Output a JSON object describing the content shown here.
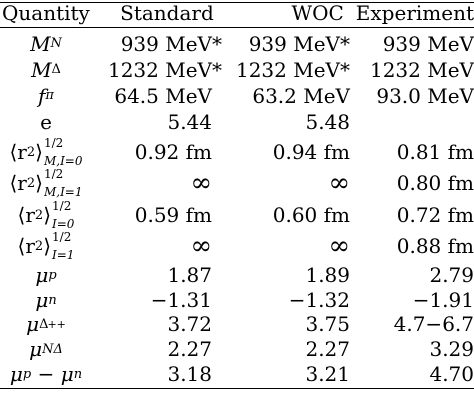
{
  "table": {
    "headers": [
      "Quantity",
      "Standard",
      "WOC",
      "Experiment"
    ],
    "rows": [
      {
        "q": "M_N",
        "standard": "939 MeV*",
        "woc": "939 MeV*",
        "experiment": "939 MeV"
      },
      {
        "q": "M_Δ",
        "standard": "1232 MeV*",
        "woc": "1232 MeV*",
        "experiment": "1232 MeV"
      },
      {
        "q": "f_π",
        "standard": "64.5 MeV",
        "woc": "63.2 MeV",
        "experiment": "93.0 MeV"
      },
      {
        "q": "e",
        "standard": "5.44",
        "woc": "5.48",
        "experiment": ""
      },
      {
        "q": "⟨r²⟩^{1/2}_{M,I=0}",
        "standard": "0.92 fm",
        "woc": "0.94 fm",
        "experiment": "0.81 fm"
      },
      {
        "q": "⟨r²⟩^{1/2}_{M,I=1}",
        "standard": "∞",
        "woc": "∞",
        "experiment": "0.80 fm"
      },
      {
        "q": "⟨r²⟩^{1/2}_{I=0}",
        "standard": "0.59 fm",
        "woc": "0.60 fm",
        "experiment": "0.72 fm"
      },
      {
        "q": "⟨r²⟩^{1/2}_{I=1}",
        "standard": "∞",
        "woc": "∞",
        "experiment": "0.88 fm"
      },
      {
        "q": "μ_p",
        "standard": "1.87",
        "woc": "1.89",
        "experiment": "2.79"
      },
      {
        "q": "μ_n",
        "standard": "−1.31",
        "woc": "−1.32",
        "experiment": "−1.91"
      },
      {
        "q": "μ_Δ++",
        "standard": "3.72",
        "woc": "3.75",
        "experiment": "4.7−6.7"
      },
      {
        "q": "μ_NΔ",
        "standard": "2.27",
        "woc": "2.27",
        "experiment": "3.29"
      },
      {
        "q": "μ_p − μ_n",
        "standard": "3.18",
        "woc": "3.21",
        "experiment": "4.70"
      }
    ]
  },
  "symbols": {
    "M": "M",
    "N": "N",
    "Delta": "Δ",
    "f": "f",
    "pi": "π",
    "e": "e",
    "r2_open": "⟨r",
    "r2_close": "⟩",
    "sq": "2",
    "half": "1/2",
    "MI0": "M,I=0",
    "MI1": "M,I=1",
    "I0": "I=0",
    "I1": "I=1",
    "mu": "μ",
    "p": "p",
    "n": "n",
    "Dpp": "Δ",
    "pp": "++",
    "ND": "NΔ",
    "minus": " − ",
    "star": "*"
  }
}
